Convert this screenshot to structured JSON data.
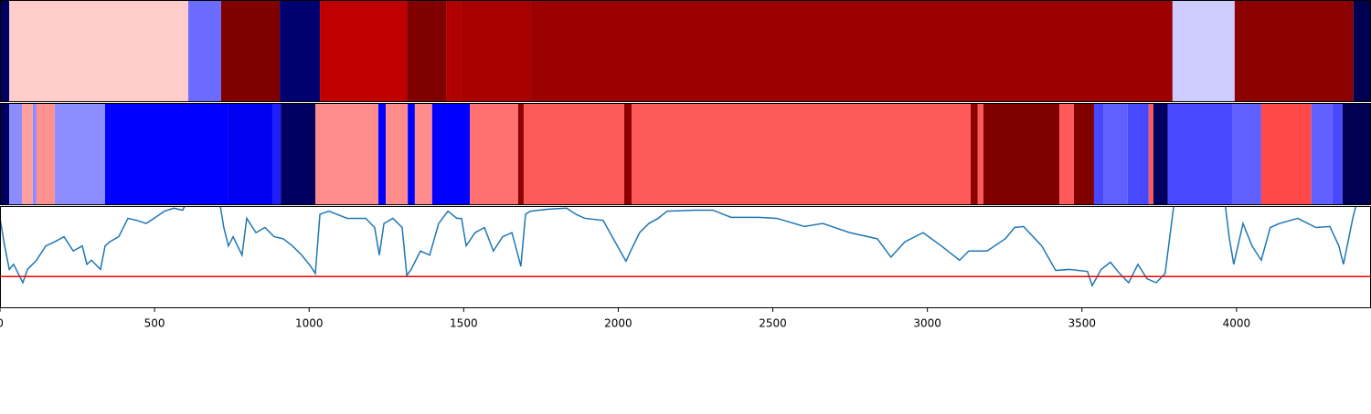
{
  "chart_data": [
    {
      "type": "segments",
      "xlim": [
        0,
        4435
      ],
      "bins": [
        0,
        30,
        609,
        715,
        905,
        1035,
        1316,
        1443,
        1493,
        1715,
        3793,
        3994,
        4378,
        4435
      ],
      "colors": [
        "#000060",
        "#ffcccc",
        "#6b6bff",
        "#800000",
        "#000070",
        "#c00000",
        "#800000",
        "#b00000",
        "#a80000",
        "#9c0000",
        "#ccccff",
        "#8c0000",
        "#000050"
      ]
    },
    {
      "type": "segments",
      "xlim": [
        0,
        4435
      ],
      "bins": [
        0,
        30,
        71,
        106,
        118,
        177,
        340,
        739,
        881,
        908,
        1020,
        1224,
        1248,
        1319,
        1342,
        1398,
        1520,
        1676,
        1694,
        2019,
        2043,
        3140,
        3163,
        3181,
        3427,
        3474,
        3539,
        3571,
        3648,
        3716,
        3731,
        3778,
        3988,
        4080,
        4242,
        4310,
        4343,
        4435
      ],
      "colors": [
        "#000060",
        "#8c8cff",
        "#ffa0a0",
        "#8c8cff",
        "#ff9090",
        "#8c8cff",
        "#0000ff",
        "#0000f0",
        "#2020ff",
        "#000060",
        "#ff8c8c",
        "#0000ff",
        "#ff8c8c",
        "#0000ff",
        "#ff8c8c",
        "#0000ff",
        "#ff7070",
        "#8c0000",
        "#ff5a5a",
        "#8c0000",
        "#ff5a5a",
        "#8c0000",
        "#ff5a5a",
        "#800000",
        "#ff5a5a",
        "#800000",
        "#4848ff",
        "#6060ff",
        "#4848ff",
        "#ff5a5a",
        "#000060",
        "#4848ff",
        "#6060ff",
        "#ff4848",
        "#6060ff",
        "#4848ff",
        "#000050"
      ]
    },
    {
      "type": "line",
      "xlim": [
        0,
        4435
      ],
      "ylim": [
        0,
        1
      ],
      "xticks": [
        0,
        500,
        1000,
        1500,
        2000,
        2500,
        3000,
        3500,
        4000
      ],
      "hline": {
        "value": 0.31,
        "color": "#ff0000"
      },
      "x": [
        0,
        15,
        30,
        44,
        59,
        74,
        89,
        118,
        148,
        177,
        207,
        237,
        266,
        281,
        296,
        325,
        340,
        355,
        384,
        414,
        443,
        473,
        503,
        532,
        562,
        591,
        609,
        710,
        724,
        739,
        754,
        783,
        798,
        828,
        857,
        887,
        916,
        946,
        976,
        1005,
        1020,
        1035,
        1064,
        1123,
        1183,
        1212,
        1227,
        1242,
        1271,
        1301,
        1316,
        1330,
        1360,
        1390,
        1419,
        1449,
        1478,
        1493,
        1508,
        1537,
        1567,
        1596,
        1626,
        1656,
        1685,
        1700,
        1715,
        1774,
        1833,
        1863,
        1892,
        1951,
        2010,
        2025,
        2040,
        2069,
        2099,
        2129,
        2158,
        2247,
        2306,
        2365,
        2454,
        2513,
        2602,
        2661,
        2749,
        2838,
        2882,
        2927,
        2986,
        3045,
        3104,
        3134,
        3193,
        3252,
        3282,
        3311,
        3370,
        3415,
        3459,
        3518,
        3533,
        3562,
        3592,
        3622,
        3651,
        3681,
        3710,
        3740,
        3769,
        3799,
        3962,
        3976,
        3991,
        4021,
        4050,
        4080,
        4109,
        4139,
        4198,
        4257,
        4302,
        4331,
        4346,
        4376,
        4390
      ],
      "series": [
        {
          "color": "#1f77b4",
          "values": [
            0.88,
            0.61,
            0.38,
            0.43,
            0.34,
            0.25,
            0.38,
            0.47,
            0.61,
            0.65,
            0.7,
            0.56,
            0.61,
            0.43,
            0.47,
            0.38,
            0.61,
            0.65,
            0.7,
            0.88,
            0.86,
            0.83,
            0.89,
            0.95,
            0.98,
            0.96,
            1.07,
            1.05,
            0.79,
            0.61,
            0.7,
            0.52,
            0.88,
            0.74,
            0.79,
            0.7,
            0.68,
            0.61,
            0.52,
            0.41,
            0.34,
            0.92,
            0.95,
            0.88,
            0.88,
            0.79,
            0.52,
            0.83,
            0.88,
            0.79,
            0.32,
            0.38,
            0.56,
            0.52,
            0.83,
            0.95,
            0.88,
            0.88,
            0.61,
            0.74,
            0.79,
            0.56,
            0.7,
            0.74,
            0.41,
            0.92,
            0.95,
            0.97,
            0.98,
            0.92,
            0.88,
            0.86,
            0.54,
            0.46,
            0.56,
            0.74,
            0.83,
            0.88,
            0.95,
            0.96,
            0.96,
            0.89,
            0.89,
            0.88,
            0.8,
            0.83,
            0.74,
            0.68,
            0.5,
            0.65,
            0.74,
            0.61,
            0.47,
            0.56,
            0.56,
            0.68,
            0.79,
            0.8,
            0.61,
            0.37,
            0.38,
            0.36,
            0.22,
            0.38,
            0.45,
            0.34,
            0.25,
            0.43,
            0.29,
            0.25,
            0.34,
            1.05,
            1.05,
            0.7,
            0.43,
            0.83,
            0.61,
            0.47,
            0.79,
            0.83,
            0.88,
            0.79,
            0.8,
            0.61,
            0.43,
            0.88,
            1.05
          ]
        }
      ]
    }
  ]
}
